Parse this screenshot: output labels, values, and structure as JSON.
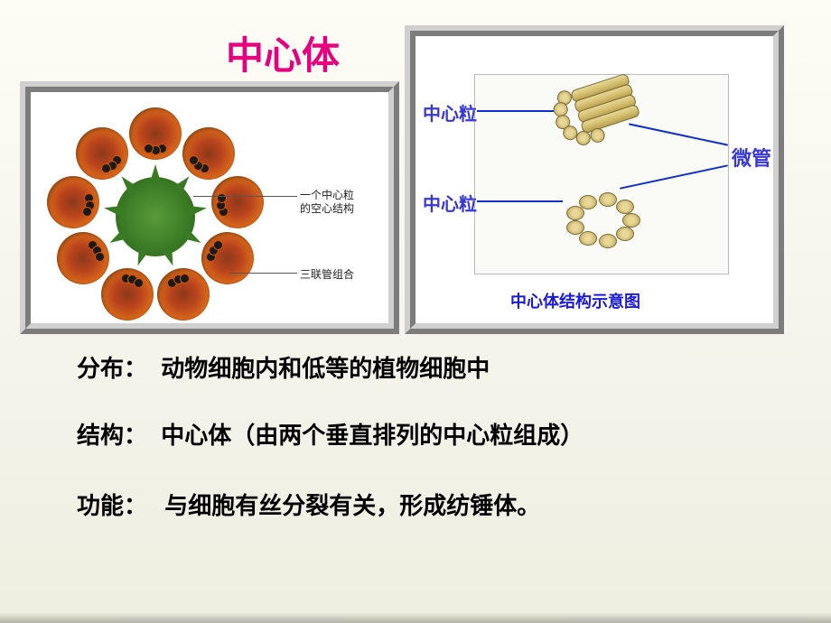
{
  "title": {
    "text": "中心体",
    "color": "#e6007e",
    "fontsize": 42
  },
  "left_fig": {
    "labels": {
      "top": {
        "line1": "一个中心粒",
        "line2": "的空心结构",
        "fontsize": 12,
        "color": "#222"
      },
      "bottom": {
        "text": "三联管组合",
        "fontsize": 12,
        "color": "#222"
      }
    },
    "colors": {
      "petal": "#b8431d",
      "center": "#3a7a25",
      "dot": "#1a1a1a",
      "border": "#d0d0d0"
    }
  },
  "right_fig": {
    "labels": {
      "top": {
        "text": "中心粒",
        "fontsize": 20,
        "color": "#3838d8"
      },
      "bottom": {
        "text": "中心粒",
        "fontsize": 20,
        "color": "#3838d8"
      },
      "right": {
        "text": "微管",
        "fontsize": 22,
        "color": "#3838d8"
      }
    },
    "caption": {
      "text": "中心体结构示意图",
      "fontsize": 18,
      "color": "#1a1adc"
    },
    "line_color": "#1030cc",
    "centriole_color": "#d4c070"
  },
  "body": {
    "row1": {
      "label": "分布：",
      "value": "动物细胞内和低等的植物细胞中"
    },
    "row2": {
      "label": "结构：",
      "value": "中心体（由两个垂直排列的中心粒组成）"
    },
    "row3": {
      "label": "功能：",
      "value": "与细胞有丝分裂有关，形成纺锤体。"
    },
    "fontsize": 26,
    "color": "#000000"
  }
}
